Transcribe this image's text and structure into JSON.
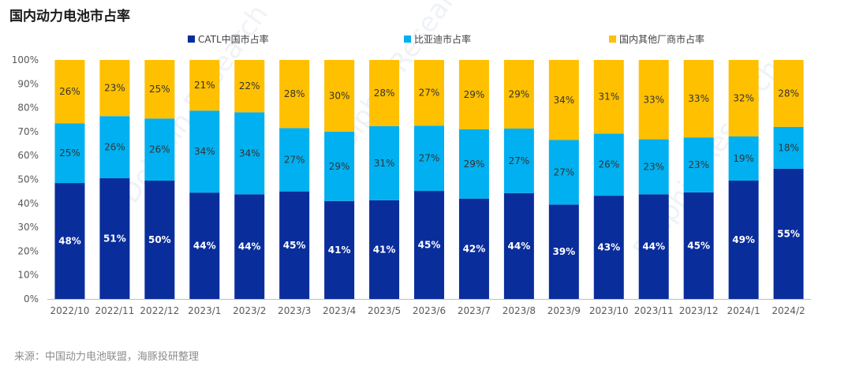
{
  "chart_data": {
    "type": "bar",
    "stacked": true,
    "percent": true,
    "title": "国内动力电池市占率",
    "source": "来源：中国动力电池联盟，海豚投研整理",
    "categories": [
      "2022/10",
      "2022/11",
      "2022/12",
      "2023/1",
      "2023/2",
      "2023/3",
      "2023/4",
      "2023/5",
      "2023/6",
      "2023/7",
      "2023/8",
      "2023/9",
      "2023/10",
      "2023/11",
      "2023/12",
      "2024/1",
      "2024/2"
    ],
    "series": [
      {
        "name": "CATL中国市占率",
        "color": "#0a2d9c",
        "label_color": "#ffffff",
        "values": [
          48,
          51,
          50,
          44,
          44,
          45,
          41,
          41,
          45,
          42,
          44,
          39,
          43,
          44,
          45,
          49,
          55
        ],
        "stack_values": [
          48.5,
          50.5,
          49.5,
          44.5,
          43.8,
          45.0,
          41.0,
          41.3,
          45.2,
          42.0,
          44.3,
          39.5,
          43.2,
          43.8,
          44.6,
          49.5,
          54.5
        ]
      },
      {
        "name": "比亚迪市占率",
        "color": "#00b0f0",
        "label_color": "#333333",
        "values": [
          25,
          26,
          26,
          34,
          34,
          27,
          29,
          31,
          27,
          29,
          27,
          27,
          26,
          23,
          23,
          19,
          18
        ],
        "stack_values": [
          25,
          26,
          26,
          34.3,
          34.3,
          26.5,
          29,
          31,
          27.3,
          29,
          27,
          27,
          26,
          23,
          23,
          18.5,
          17.5
        ]
      },
      {
        "name": "国内其他厂商市占率",
        "color": "#ffc000",
        "label_color": "#333333",
        "values": [
          26,
          23,
          25,
          21,
          22,
          28,
          30,
          28,
          27,
          29,
          29,
          34,
          31,
          33,
          33,
          32,
          28
        ],
        "stack_values": [
          26.5,
          23.5,
          24.5,
          21.2,
          21.9,
          28.5,
          30,
          27.7,
          27.5,
          29,
          28.7,
          33.5,
          30.8,
          33.2,
          32.4,
          32,
          28
        ]
      }
    ],
    "value_suffix": "%",
    "ylim": [
      0,
      100
    ],
    "yticks": [
      "0%",
      "10%",
      "20%",
      "30%",
      "40%",
      "50%",
      "60%",
      "70%",
      "80%",
      "90%",
      "100%"
    ],
    "legend_position": "top",
    "watermark": "Dolphin Research"
  }
}
